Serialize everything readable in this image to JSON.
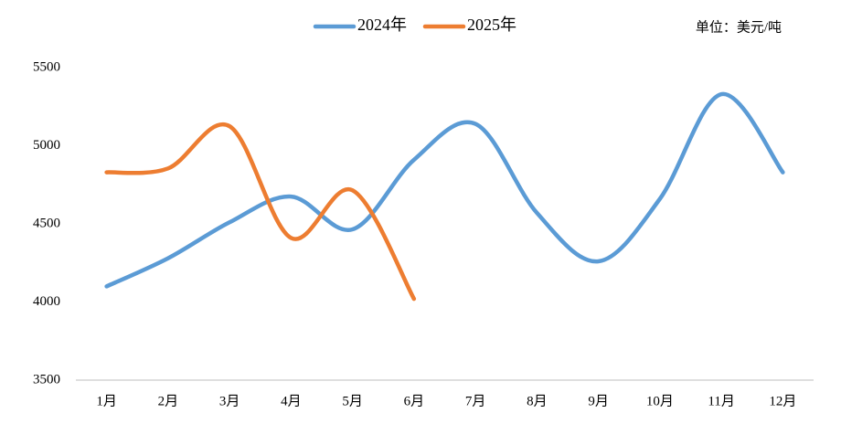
{
  "chart_data": {
    "type": "line",
    "unit": "单位：美元/吨",
    "categories": [
      "1月",
      "2月",
      "3月",
      "4月",
      "5月",
      "6月",
      "7月",
      "8月",
      "9月",
      "10月",
      "11月",
      "12月"
    ],
    "series": [
      {
        "name": "2024年",
        "color": "#5b9bd5",
        "values": [
          4100,
          4280,
          4510,
          4675,
          4465,
          4910,
          5140,
          4570,
          4260,
          4660,
          5330,
          4830
        ]
      },
      {
        "name": "2025年",
        "color": "#ed7d31",
        "values": [
          4830,
          4855,
          5125,
          4410,
          4715,
          4020,
          null,
          null,
          null,
          null,
          null,
          null
        ]
      }
    ],
    "ylim": [
      3500,
      5500
    ],
    "yticks": [
      3500,
      4000,
      4500,
      5000,
      5500
    ],
    "smooth": true,
    "grid": false,
    "legend": "top"
  }
}
